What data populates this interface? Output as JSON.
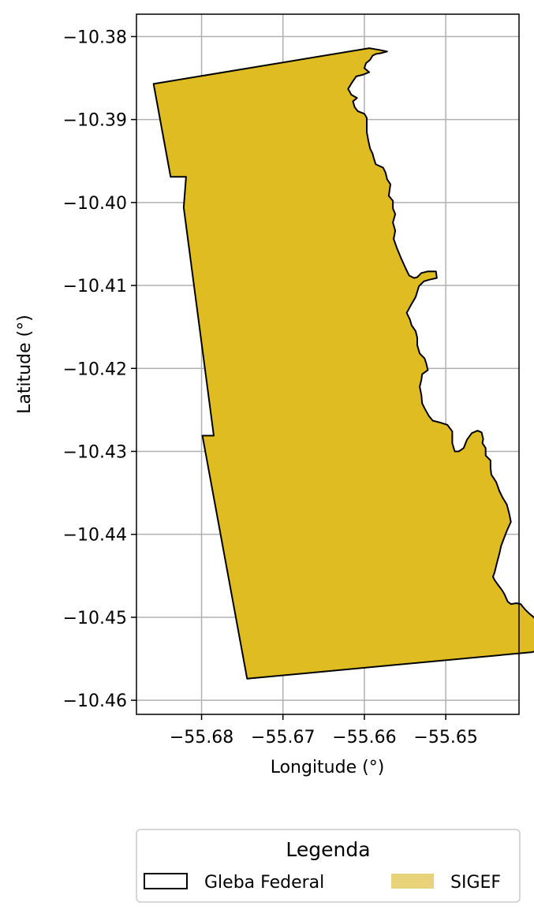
{
  "chart_data": {
    "type": "map",
    "xlabel": "Longitude (°)",
    "ylabel": "Latitude (°)",
    "xlim": [
      -55.688,
      -55.641
    ],
    "ylim": [
      -10.4617,
      -10.3773
    ],
    "grid": true,
    "x_ticks": [
      -55.68,
      -55.67,
      -55.66,
      -55.65
    ],
    "x_tick_labels": [
      "−55.68",
      "−55.67",
      "−55.66",
      "−55.65"
    ],
    "y_ticks": [
      -10.38,
      -10.39,
      -10.4,
      -10.41,
      -10.42,
      -10.43,
      -10.44,
      -10.45,
      -10.46
    ],
    "y_tick_labels": [
      "−10.38",
      "−10.39",
      "−10.40",
      "−10.41",
      "−10.42",
      "−10.43",
      "−10.44",
      "−10.45",
      "−10.46"
    ],
    "legend": {
      "title": "Legenda",
      "placement": "bottom-center",
      "entries": [
        {
          "label": "Gleba Federal",
          "style": "outline",
          "color": "#000000"
        },
        {
          "label": "SIGEF",
          "style": "filled",
          "color": "#e8d27a"
        }
      ]
    },
    "layers": [
      {
        "name": "Gleba Federal",
        "fill": "#dfbc22",
        "stroke": "#000000",
        "polygon_lonlat": [
          [
            -55.6859,
            -10.3857
          ],
          [
            -55.6594,
            -10.3814
          ],
          [
            -55.6582,
            -10.3816
          ],
          [
            -55.6572,
            -10.3818
          ],
          [
            -55.658,
            -10.382
          ],
          [
            -55.6586,
            -10.3821
          ],
          [
            -55.659,
            -10.3823
          ],
          [
            -55.6593,
            -10.3828
          ],
          [
            -55.6598,
            -10.3832
          ],
          [
            -55.66,
            -10.3838
          ],
          [
            -55.6594,
            -10.3843
          ],
          [
            -55.6602,
            -10.3846
          ],
          [
            -55.661,
            -10.3848
          ],
          [
            -55.6615,
            -10.3855
          ],
          [
            -55.662,
            -10.3863
          ],
          [
            -55.6616,
            -10.387
          ],
          [
            -55.6609,
            -10.3874
          ],
          [
            -55.6614,
            -10.3878
          ],
          [
            -55.6612,
            -10.3885
          ],
          [
            -55.6608,
            -10.389
          ],
          [
            -55.66,
            -10.3893
          ],
          [
            -55.6597,
            -10.3898
          ],
          [
            -55.6597,
            -10.3905
          ],
          [
            -55.6597,
            -10.3915
          ],
          [
            -55.6595,
            -10.3926
          ],
          [
            -55.6593,
            -10.3935
          ],
          [
            -55.659,
            -10.3941
          ],
          [
            -55.6588,
            -10.3948
          ],
          [
            -55.6586,
            -10.3954
          ],
          [
            -55.6577,
            -10.3958
          ],
          [
            -55.6574,
            -10.3964
          ],
          [
            -55.6572,
            -10.3972
          ],
          [
            -55.6568,
            -10.3978
          ],
          [
            -55.657,
            -10.3992
          ],
          [
            -55.6565,
            -10.3998
          ],
          [
            -55.6565,
            -10.4007
          ],
          [
            -55.6562,
            -10.4014
          ],
          [
            -55.6565,
            -10.4024
          ],
          [
            -55.6562,
            -10.4034
          ],
          [
            -55.6564,
            -10.4044
          ],
          [
            -55.656,
            -10.4055
          ],
          [
            -55.6555,
            -10.4067
          ],
          [
            -55.6549,
            -10.408
          ],
          [
            -55.6545,
            -10.4088
          ],
          [
            -55.6539,
            -10.4091
          ],
          [
            -55.6535,
            -10.409
          ],
          [
            -55.653,
            -10.4085
          ],
          [
            -55.6522,
            -10.4083
          ],
          [
            -55.6512,
            -10.4083
          ],
          [
            -55.6511,
            -10.4091
          ],
          [
            -55.652,
            -10.4093
          ],
          [
            -55.6527,
            -10.4095
          ],
          [
            -55.6533,
            -10.4101
          ],
          [
            -55.6537,
            -10.4114
          ],
          [
            -55.6543,
            -10.4124
          ],
          [
            -55.6548,
            -10.4133
          ],
          [
            -55.6544,
            -10.4141
          ],
          [
            -55.6542,
            -10.4148
          ],
          [
            -55.6537,
            -10.4155
          ],
          [
            -55.6535,
            -10.4163
          ],
          [
            -55.6535,
            -10.4172
          ],
          [
            -55.6532,
            -10.4182
          ],
          [
            -55.6526,
            -10.4188
          ],
          [
            -55.6524,
            -10.4194
          ],
          [
            -55.6522,
            -10.4202
          ],
          [
            -55.6529,
            -10.4207
          ],
          [
            -55.653,
            -10.4214
          ],
          [
            -55.6532,
            -10.4222
          ],
          [
            -55.653,
            -10.4232
          ],
          [
            -55.6529,
            -10.4242
          ],
          [
            -55.6526,
            -10.4248
          ],
          [
            -55.6521,
            -10.4257
          ],
          [
            -55.6516,
            -10.4263
          ],
          [
            -55.6508,
            -10.4265
          ],
          [
            -55.6498,
            -10.4268
          ],
          [
            -55.6492,
            -10.4276
          ],
          [
            -55.6492,
            -10.429
          ],
          [
            -55.6489,
            -10.43
          ],
          [
            -55.6484,
            -10.43
          ],
          [
            -55.6478,
            -10.4296
          ],
          [
            -55.6474,
            -10.4286
          ],
          [
            -55.6468,
            -10.4278
          ],
          [
            -55.6461,
            -10.4275
          ],
          [
            -55.6456,
            -10.4277
          ],
          [
            -55.6454,
            -10.4285
          ],
          [
            -55.6455,
            -10.429
          ],
          [
            -55.6451,
            -10.4296
          ],
          [
            -55.6451,
            -10.4305
          ],
          [
            -55.6445,
            -10.4311
          ],
          [
            -55.6445,
            -10.432
          ],
          [
            -55.6444,
            -10.4328
          ],
          [
            -55.644,
            -10.4334
          ],
          [
            -55.6438,
            -10.4337
          ],
          [
            -55.6434,
            -10.4348
          ],
          [
            -55.643,
            -10.4356
          ],
          [
            -55.6425,
            -10.4364
          ],
          [
            -55.6422,
            -10.4375
          ],
          [
            -55.642,
            -10.4385
          ],
          [
            -55.6425,
            -10.4396
          ],
          [
            -55.6429,
            -10.4406
          ],
          [
            -55.6432,
            -10.4414
          ],
          [
            -55.6434,
            -10.4423
          ],
          [
            -55.6437,
            -10.4434
          ],
          [
            -55.644,
            -10.4446
          ],
          [
            -55.6442,
            -10.4451
          ],
          [
            -55.644,
            -10.4455
          ],
          [
            -55.6435,
            -10.4462
          ],
          [
            -55.6431,
            -10.4467
          ],
          [
            -55.6428,
            -10.4472
          ],
          [
            -55.6424,
            -10.4481
          ],
          [
            -55.642,
            -10.4484
          ],
          [
            -55.6413,
            -10.4483
          ],
          [
            -55.6408,
            -10.4484
          ],
          [
            -55.6403,
            -10.449
          ],
          [
            -55.6398,
            -10.4495
          ],
          [
            -55.6393,
            -10.4499
          ],
          [
            -55.6388,
            -10.4504
          ],
          [
            -55.6386,
            -10.4511
          ],
          [
            -55.6384,
            -10.4515
          ],
          [
            -55.6383,
            -10.4524
          ],
          [
            -55.6384,
            -10.4532
          ],
          [
            -55.6383,
            -10.4539
          ],
          [
            -55.6394,
            -10.4542
          ],
          [
            -55.6744,
            -10.4574
          ],
          [
            -55.6799,
            -10.4281
          ],
          [
            -55.6785,
            -10.4281
          ],
          [
            -55.6822,
            -10.4006
          ],
          [
            -55.6819,
            -10.3969
          ],
          [
            -55.6838,
            -10.3969
          ]
        ]
      }
    ]
  }
}
